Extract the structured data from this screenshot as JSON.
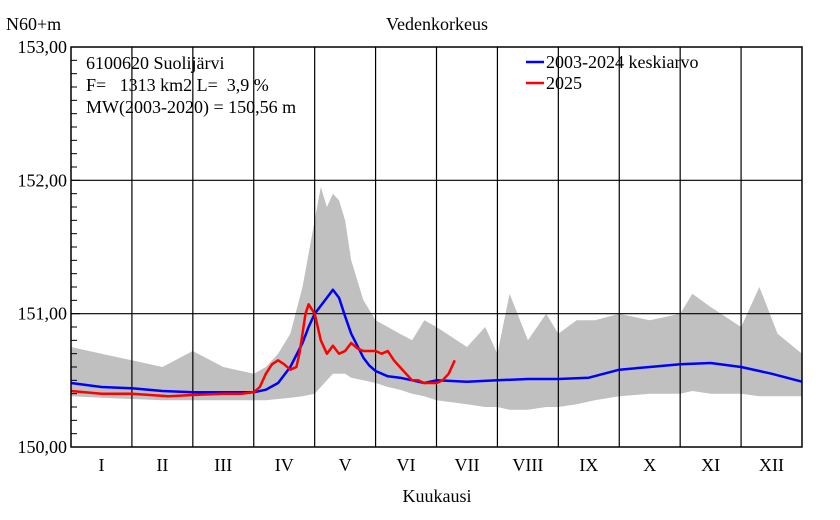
{
  "chart_data": {
    "type": "line",
    "title": "Vedenkorkeus",
    "ylabel": "N60+m",
    "xlabel": "Kuukausi",
    "ylim": [
      150.0,
      153.0
    ],
    "y_ticks": [
      "150,00",
      "151,00",
      "152,00",
      "153,00"
    ],
    "y_tick_values": [
      150.0,
      151.0,
      152.0,
      153.0
    ],
    "x_range": [
      0,
      12
    ],
    "months": [
      "I",
      "II",
      "III",
      "IV",
      "V",
      "VI",
      "VII",
      "VIII",
      "IX",
      "X",
      "XI",
      "XII"
    ],
    "grid": true,
    "legend_position": "top-right",
    "annotations": [
      "6100620 Suolijärvi",
      "F=   1313 km2 L=  3,9 %",
      "MW(2003-2020) = 150,56 m"
    ],
    "series": [
      {
        "name": "2003-2024 keskiarvo",
        "color": "#0000ff",
        "x": [
          0,
          0.5,
          1,
          1.5,
          2,
          2.5,
          3,
          3.2,
          3.4,
          3.6,
          3.8,
          3.9,
          4.0,
          4.1,
          4.2,
          4.3,
          4.4,
          4.5,
          4.6,
          4.7,
          4.8,
          4.9,
          5.0,
          5.2,
          5.4,
          5.6,
          5.8,
          6,
          6.5,
          7,
          7.5,
          8,
          8.5,
          9,
          9.5,
          10,
          10.5,
          11,
          11.5,
          12
        ],
        "values": [
          150.48,
          150.45,
          150.44,
          150.42,
          150.41,
          150.41,
          150.41,
          150.43,
          150.48,
          150.6,
          150.78,
          150.9,
          151.0,
          151.06,
          151.12,
          151.18,
          151.12,
          150.98,
          150.85,
          150.76,
          150.67,
          150.61,
          150.57,
          150.53,
          150.52,
          150.5,
          150.48,
          150.5,
          150.49,
          150.5,
          150.51,
          150.51,
          150.52,
          150.58,
          150.6,
          150.62,
          150.63,
          150.6,
          150.55,
          150.49
        ]
      },
      {
        "name": "2025",
        "color": "#ff0000",
        "x": [
          0,
          0.5,
          1,
          1.3,
          1.6,
          2,
          2.5,
          2.8,
          3.0,
          3.1,
          3.2,
          3.3,
          3.4,
          3.5,
          3.6,
          3.7,
          3.75,
          3.8,
          3.85,
          3.9,
          4.0,
          4.1,
          4.2,
          4.3,
          4.4,
          4.5,
          4.6,
          4.7,
          4.8,
          4.9,
          5.0,
          5.1,
          5.2,
          5.3,
          5.4,
          5.5,
          5.6,
          5.7,
          5.8,
          5.9,
          6.0,
          6.1,
          6.2,
          6.3
        ],
        "values": [
          150.42,
          150.4,
          150.4,
          150.39,
          150.38,
          150.39,
          150.4,
          150.4,
          150.41,
          150.45,
          150.55,
          150.62,
          150.65,
          150.62,
          150.58,
          150.6,
          150.7,
          150.85,
          151.0,
          151.07,
          151.0,
          150.8,
          150.7,
          150.76,
          150.7,
          150.72,
          150.78,
          150.74,
          150.72,
          150.72,
          150.72,
          150.7,
          150.72,
          150.65,
          150.6,
          150.55,
          150.5,
          150.5,
          150.48,
          150.48,
          150.48,
          150.5,
          150.55,
          150.65
        ]
      }
    ],
    "range_band": {
      "color": "#c0c0c0",
      "x": [
        0,
        0.5,
        1,
        1.5,
        2,
        2.5,
        3,
        3.2,
        3.4,
        3.6,
        3.8,
        4.0,
        4.1,
        4.2,
        4.3,
        4.4,
        4.5,
        4.6,
        4.8,
        5.0,
        5.2,
        5.4,
        5.6,
        5.8,
        6,
        6.5,
        6.8,
        7,
        7.2,
        7.5,
        7.8,
        8,
        8.3,
        8.6,
        9,
        9.5,
        10,
        10.2,
        10.5,
        11,
        11.3,
        11.6,
        12
      ],
      "max": [
        150.75,
        150.7,
        150.65,
        150.6,
        150.72,
        150.6,
        150.55,
        150.6,
        150.7,
        150.85,
        151.2,
        151.7,
        151.95,
        151.8,
        151.9,
        151.85,
        151.7,
        151.4,
        151.1,
        150.95,
        150.9,
        150.85,
        150.8,
        150.95,
        150.9,
        150.75,
        150.9,
        150.7,
        151.15,
        150.8,
        151.0,
        150.85,
        150.95,
        150.95,
        151.0,
        150.95,
        151.0,
        151.15,
        151.05,
        150.9,
        151.2,
        150.85,
        150.7
      ],
      "min": [
        150.38,
        150.37,
        150.36,
        150.35,
        150.35,
        150.35,
        150.35,
        150.35,
        150.36,
        150.37,
        150.38,
        150.4,
        150.45,
        150.5,
        150.55,
        150.55,
        150.55,
        150.52,
        150.5,
        150.48,
        150.45,
        150.43,
        150.4,
        150.38,
        150.35,
        150.32,
        150.3,
        150.3,
        150.28,
        150.28,
        150.3,
        150.3,
        150.32,
        150.35,
        150.38,
        150.4,
        150.4,
        150.42,
        150.4,
        150.4,
        150.38,
        150.38,
        150.38
      ]
    }
  }
}
